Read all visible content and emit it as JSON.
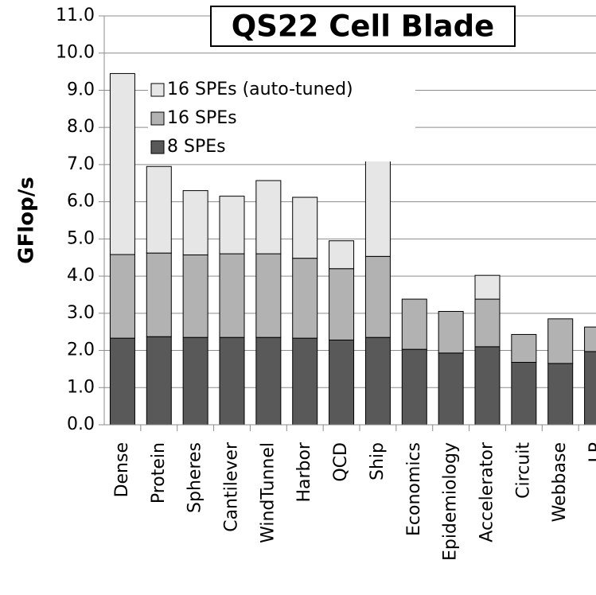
{
  "chart_data": {
    "type": "stacked_bar",
    "title": "QS22 Cell Blade",
    "y_label": "GFlop/s",
    "categories": [
      "Dense",
      "Protein",
      "Spheres",
      "Cantilever",
      "WindTunnel",
      "Harbor",
      "QCD",
      "Ship",
      "Economics",
      "Epidemiology",
      "Accelerator",
      "Circuit",
      "Webbase",
      "LP"
    ],
    "series": [
      {
        "name": "8 SPEs",
        "color": "#595959",
        "values": [
          2.33,
          2.37,
          2.35,
          2.35,
          2.35,
          2.33,
          2.28,
          2.35,
          2.03,
          1.93,
          2.1,
          1.68,
          1.65,
          1.97
        ]
      },
      {
        "name": "16 SPEs",
        "color": "#b2b2b2",
        "values": [
          2.25,
          2.25,
          2.22,
          2.25,
          2.25,
          2.15,
          1.92,
          2.18,
          1.35,
          1.12,
          1.28,
          0.75,
          1.2,
          0.66
        ]
      },
      {
        "name": "16 SPEs (auto-tuned)",
        "color": "#e6e6e6",
        "values": [
          4.87,
          2.33,
          1.73,
          1.55,
          1.97,
          1.64,
          0.75,
          3.24,
          0,
          0,
          0.64,
          0,
          0,
          0
        ]
      }
    ],
    "ylim": [
      0,
      11
    ],
    "yticks": [
      {
        "value": 0,
        "label": "0.0"
      },
      {
        "value": 1,
        "label": "1.0"
      },
      {
        "value": 2,
        "label": "2.0"
      },
      {
        "value": 3,
        "label": "3.0"
      },
      {
        "value": 4,
        "label": "4.0"
      },
      {
        "value": 5,
        "label": "5.0"
      },
      {
        "value": 6,
        "label": "6.0"
      },
      {
        "value": 7,
        "label": "7.0"
      },
      {
        "value": 8,
        "label": "8.0"
      },
      {
        "value": 9,
        "label": "9.0"
      },
      {
        "value": 10,
        "label": "10.0"
      },
      {
        "value": 11,
        "label": "11.0"
      }
    ],
    "grid": true,
    "legend": "upper left"
  }
}
